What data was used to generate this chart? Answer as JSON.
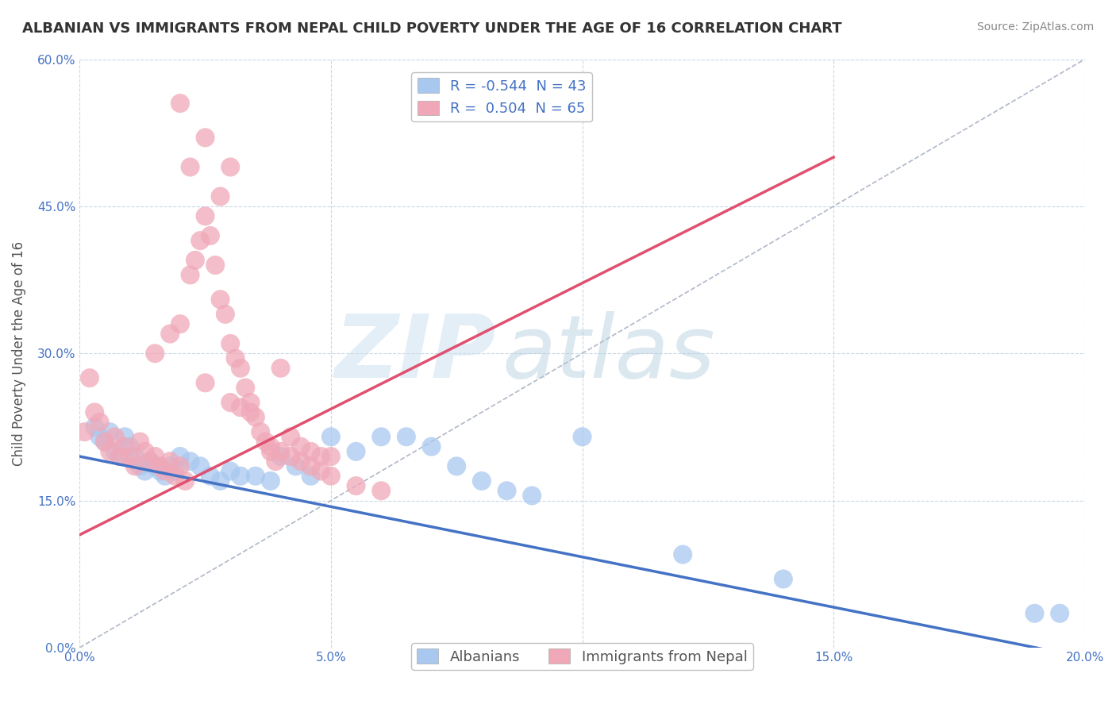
{
  "title": "ALBANIAN VS IMMIGRANTS FROM NEPAL CHILD POVERTY UNDER THE AGE OF 16 CORRELATION CHART",
  "source": "Source: ZipAtlas.com",
  "ylabel": "Child Poverty Under the Age of 16",
  "xlim": [
    0.0,
    0.2
  ],
  "ylim": [
    0.0,
    0.6
  ],
  "xticks": [
    0.0,
    0.05,
    0.1,
    0.15,
    0.2
  ],
  "yticks": [
    0.0,
    0.15,
    0.3,
    0.45,
    0.6
  ],
  "xtick_labels": [
    "0.0%",
    "5.0%",
    "10.0%",
    "15.0%",
    "20.0%"
  ],
  "ytick_labels": [
    "0.0%",
    "15.0%",
    "30.0%",
    "45.0%",
    "60.0%"
  ],
  "albanian_color": "#a8c8f0",
  "nepal_color": "#f0a8b8",
  "albanian_line_color": "#4472c4",
  "nepal_line_color": "#e05070",
  "diagonal_color": "#b0b8c8",
  "legend_R_albanian": "-0.544",
  "legend_N_albanian": "43",
  "legend_R_nepal": "0.504",
  "legend_N_nepal": "65",
  "albanian_line": [
    [
      0.0,
      0.195
    ],
    [
      0.2,
      -0.01
    ]
  ],
  "nepal_line": [
    [
      0.0,
      0.115
    ],
    [
      0.15,
      0.5
    ]
  ],
  "albanian_points": [
    [
      0.003,
      0.225
    ],
    [
      0.004,
      0.215
    ],
    [
      0.005,
      0.21
    ],
    [
      0.006,
      0.22
    ],
    [
      0.007,
      0.2
    ],
    [
      0.008,
      0.195
    ],
    [
      0.009,
      0.215
    ],
    [
      0.01,
      0.205
    ],
    [
      0.011,
      0.195
    ],
    [
      0.012,
      0.185
    ],
    [
      0.013,
      0.18
    ],
    [
      0.014,
      0.19
    ],
    [
      0.015,
      0.185
    ],
    [
      0.016,
      0.18
    ],
    [
      0.017,
      0.175
    ],
    [
      0.018,
      0.185
    ],
    [
      0.019,
      0.18
    ],
    [
      0.02,
      0.195
    ],
    [
      0.022,
      0.19
    ],
    [
      0.024,
      0.185
    ],
    [
      0.026,
      0.175
    ],
    [
      0.028,
      0.17
    ],
    [
      0.03,
      0.18
    ],
    [
      0.032,
      0.175
    ],
    [
      0.035,
      0.175
    ],
    [
      0.038,
      0.17
    ],
    [
      0.04,
      0.195
    ],
    [
      0.043,
      0.185
    ],
    [
      0.046,
      0.175
    ],
    [
      0.05,
      0.215
    ],
    [
      0.055,
      0.2
    ],
    [
      0.06,
      0.215
    ],
    [
      0.065,
      0.215
    ],
    [
      0.07,
      0.205
    ],
    [
      0.075,
      0.185
    ],
    [
      0.08,
      0.17
    ],
    [
      0.085,
      0.16
    ],
    [
      0.09,
      0.155
    ],
    [
      0.1,
      0.215
    ],
    [
      0.12,
      0.095
    ],
    [
      0.14,
      0.07
    ],
    [
      0.19,
      0.035
    ],
    [
      0.195,
      0.035
    ]
  ],
  "nepal_points": [
    [
      0.001,
      0.22
    ],
    [
      0.002,
      0.275
    ],
    [
      0.003,
      0.24
    ],
    [
      0.004,
      0.23
    ],
    [
      0.005,
      0.21
    ],
    [
      0.006,
      0.2
    ],
    [
      0.007,
      0.215
    ],
    [
      0.008,
      0.195
    ],
    [
      0.009,
      0.205
    ],
    [
      0.01,
      0.195
    ],
    [
      0.011,
      0.185
    ],
    [
      0.012,
      0.21
    ],
    [
      0.013,
      0.2
    ],
    [
      0.014,
      0.19
    ],
    [
      0.015,
      0.195
    ],
    [
      0.016,
      0.185
    ],
    [
      0.017,
      0.18
    ],
    [
      0.018,
      0.19
    ],
    [
      0.019,
      0.175
    ],
    [
      0.02,
      0.185
    ],
    [
      0.021,
      0.17
    ],
    [
      0.022,
      0.38
    ],
    [
      0.023,
      0.395
    ],
    [
      0.024,
      0.415
    ],
    [
      0.025,
      0.44
    ],
    [
      0.026,
      0.42
    ],
    [
      0.027,
      0.39
    ],
    [
      0.028,
      0.355
    ],
    [
      0.029,
      0.34
    ],
    [
      0.03,
      0.31
    ],
    [
      0.031,
      0.295
    ],
    [
      0.032,
      0.285
    ],
    [
      0.033,
      0.265
    ],
    [
      0.034,
      0.25
    ],
    [
      0.035,
      0.235
    ],
    [
      0.036,
      0.22
    ],
    [
      0.037,
      0.21
    ],
    [
      0.038,
      0.2
    ],
    [
      0.039,
      0.19
    ],
    [
      0.04,
      0.285
    ],
    [
      0.042,
      0.215
    ],
    [
      0.044,
      0.205
    ],
    [
      0.046,
      0.2
    ],
    [
      0.048,
      0.195
    ],
    [
      0.05,
      0.195
    ],
    [
      0.02,
      0.555
    ],
    [
      0.025,
      0.52
    ],
    [
      0.03,
      0.49
    ],
    [
      0.022,
      0.49
    ],
    [
      0.028,
      0.46
    ],
    [
      0.015,
      0.3
    ],
    [
      0.018,
      0.32
    ],
    [
      0.02,
      0.33
    ],
    [
      0.025,
      0.27
    ],
    [
      0.03,
      0.25
    ],
    [
      0.032,
      0.245
    ],
    [
      0.034,
      0.24
    ],
    [
      0.038,
      0.205
    ],
    [
      0.04,
      0.2
    ],
    [
      0.042,
      0.195
    ],
    [
      0.044,
      0.19
    ],
    [
      0.046,
      0.185
    ],
    [
      0.048,
      0.18
    ],
    [
      0.05,
      0.175
    ],
    [
      0.055,
      0.165
    ],
    [
      0.06,
      0.16
    ]
  ],
  "watermark_zip": "ZIP",
  "watermark_atlas": "atlas",
  "background_color": "#ffffff",
  "grid_color": "#c8d8e8",
  "title_fontsize": 13,
  "axis_label_fontsize": 12,
  "tick_fontsize": 11,
  "legend_fontsize": 13
}
